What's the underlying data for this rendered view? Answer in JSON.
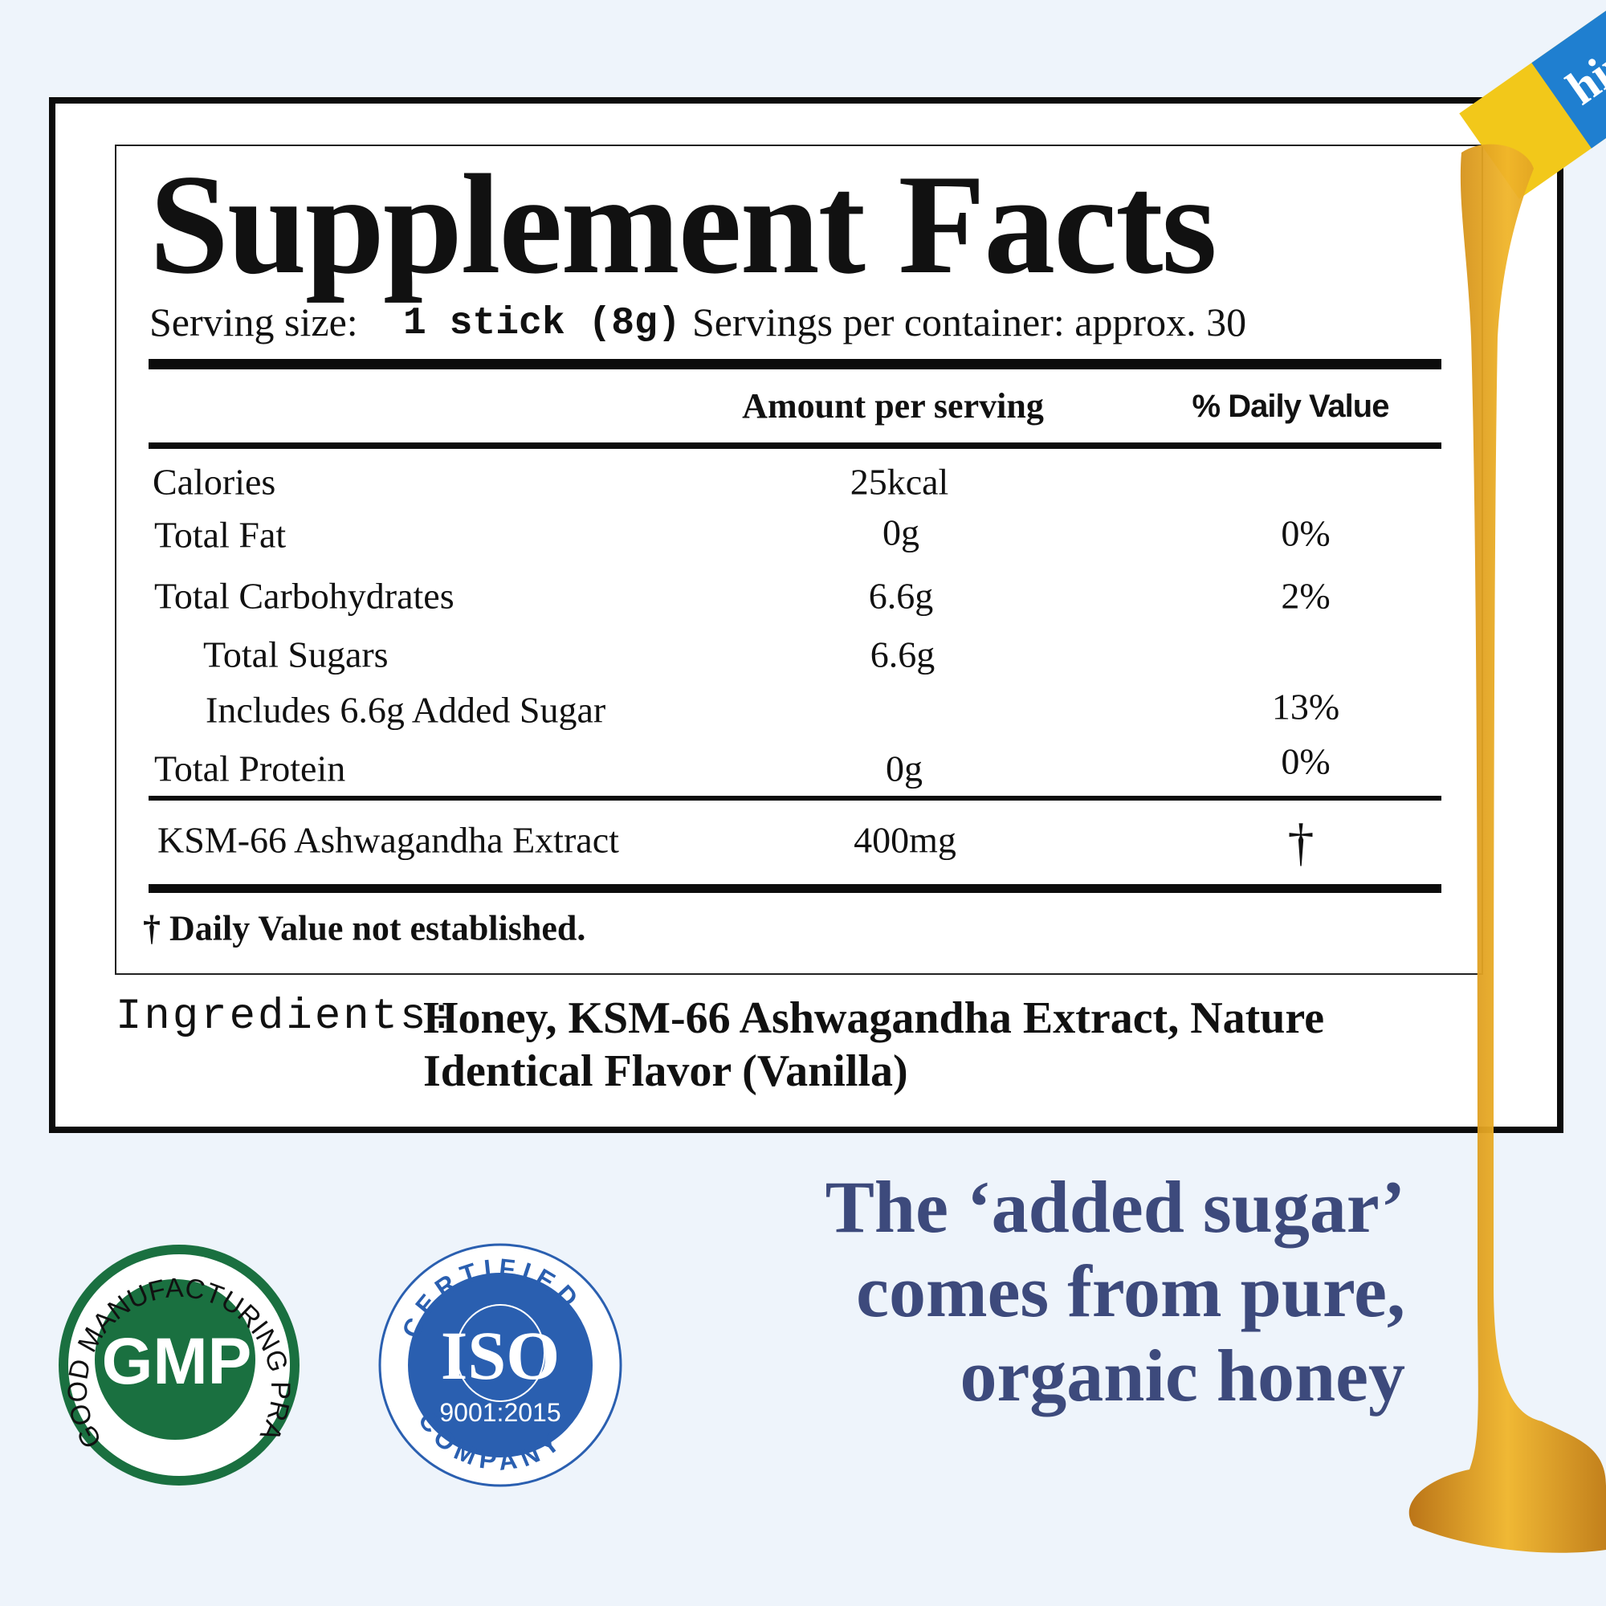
{
  "panel": {
    "title": "Supplement Facts",
    "serving_size_label": "Serving size:",
    "serving_size_value": "1 stick (8g)",
    "servings_per_container": "Servings per container: approx. 30",
    "headers": {
      "amount": "Amount per serving",
      "daily_value": "% Daily Value"
    },
    "rows": [
      {
        "label": "Calories",
        "amount": "25kcal",
        "dv": ""
      },
      {
        "label": "Total Fat",
        "amount": "0g",
        "dv": "0%"
      },
      {
        "label": "Total Carbohydrates",
        "amount": "6.6g",
        "dv": "2%"
      },
      {
        "label": "Total Sugars",
        "amount": "6.6g",
        "dv": ""
      },
      {
        "label": "Includes 6.6g Added Sugar",
        "amount": "",
        "dv": "13%"
      },
      {
        "label": "Total Protein",
        "amount": "0g",
        "dv": "0%"
      }
    ],
    "extract": {
      "label": "KSM-66  Ashwagandha Extract",
      "amount": "400mg",
      "dv": "†"
    },
    "footnote": "† Daily Value not established."
  },
  "ingredients": {
    "label": "Ingredients:",
    "line1": "Honey, KSM-66  Ashwagandha Extract, Nature",
    "line2": "Identical Flavor (Vanilla)"
  },
  "tagline": [
    "The ‘added sugar’",
    "comes from pure,",
    "organic honey"
  ],
  "badges": {
    "gmp": {
      "center": "GMP",
      "ring": "GOOD MANUFACTURING PRACTICE",
      "color": "#1a7040"
    },
    "iso": {
      "top": "CERTIFIED",
      "center": "ISO",
      "code": "9001:2015",
      "bottom": "COMPANY",
      "color": "#2a5fb0"
    }
  },
  "stick_brand": "hiv",
  "colors": {
    "background": "#eef4fb",
    "tagline": "#3d4a7c",
    "honey": "#d89a1a",
    "stick_blue": "#1f7fd0",
    "stick_yellow": "#f2c81a"
  }
}
